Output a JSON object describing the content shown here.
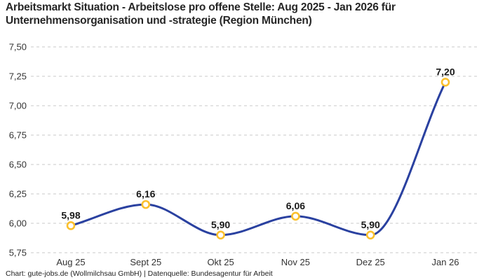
{
  "chart_data": {
    "type": "line",
    "title": "Arbeitsmarkt Situation - Arbeitslose pro offene Stelle: Aug 2025 - Jan 2026 für Unternehmensorganisation und -strategie (Region München)",
    "categories": [
      "Aug 25",
      "Sept 25",
      "Okt 25",
      "Nov 25",
      "Dez 25",
      "Jan 26"
    ],
    "values": [
      5.98,
      6.16,
      5.9,
      6.06,
      5.9,
      7.2
    ],
    "point_labels": [
      "5,98",
      "6,16",
      "5,90",
      "6,06",
      "5,90",
      "7,20"
    ],
    "y_ticks": [
      5.75,
      6.0,
      6.25,
      6.5,
      6.75,
      7.0,
      7.25,
      7.5
    ],
    "y_tick_labels": [
      "5,75",
      "6,00",
      "6,25",
      "6,50",
      "6,75",
      "7,00",
      "7,25",
      "7,50"
    ],
    "ylim": [
      5.75,
      7.5
    ],
    "xlabel": "",
    "ylabel": "",
    "legend": "none",
    "grid": "horizontal-dashed",
    "interpolation": "monotone"
  },
  "footer": {
    "text": "Chart: gute-jobs.de (Wollmilchsau GmbH) | Datenquelle: Bundesagentur für Arbeit"
  },
  "colors": {
    "line": "#2A41A0",
    "marker_ring": "#FBC02D",
    "marker_fill": "#FFFFFF",
    "grid": "#C9C9C9",
    "title_text": "#262626",
    "axis_text": "#333333",
    "point_label_text": "#1A1A1A",
    "background": "#FFFFFF"
  }
}
